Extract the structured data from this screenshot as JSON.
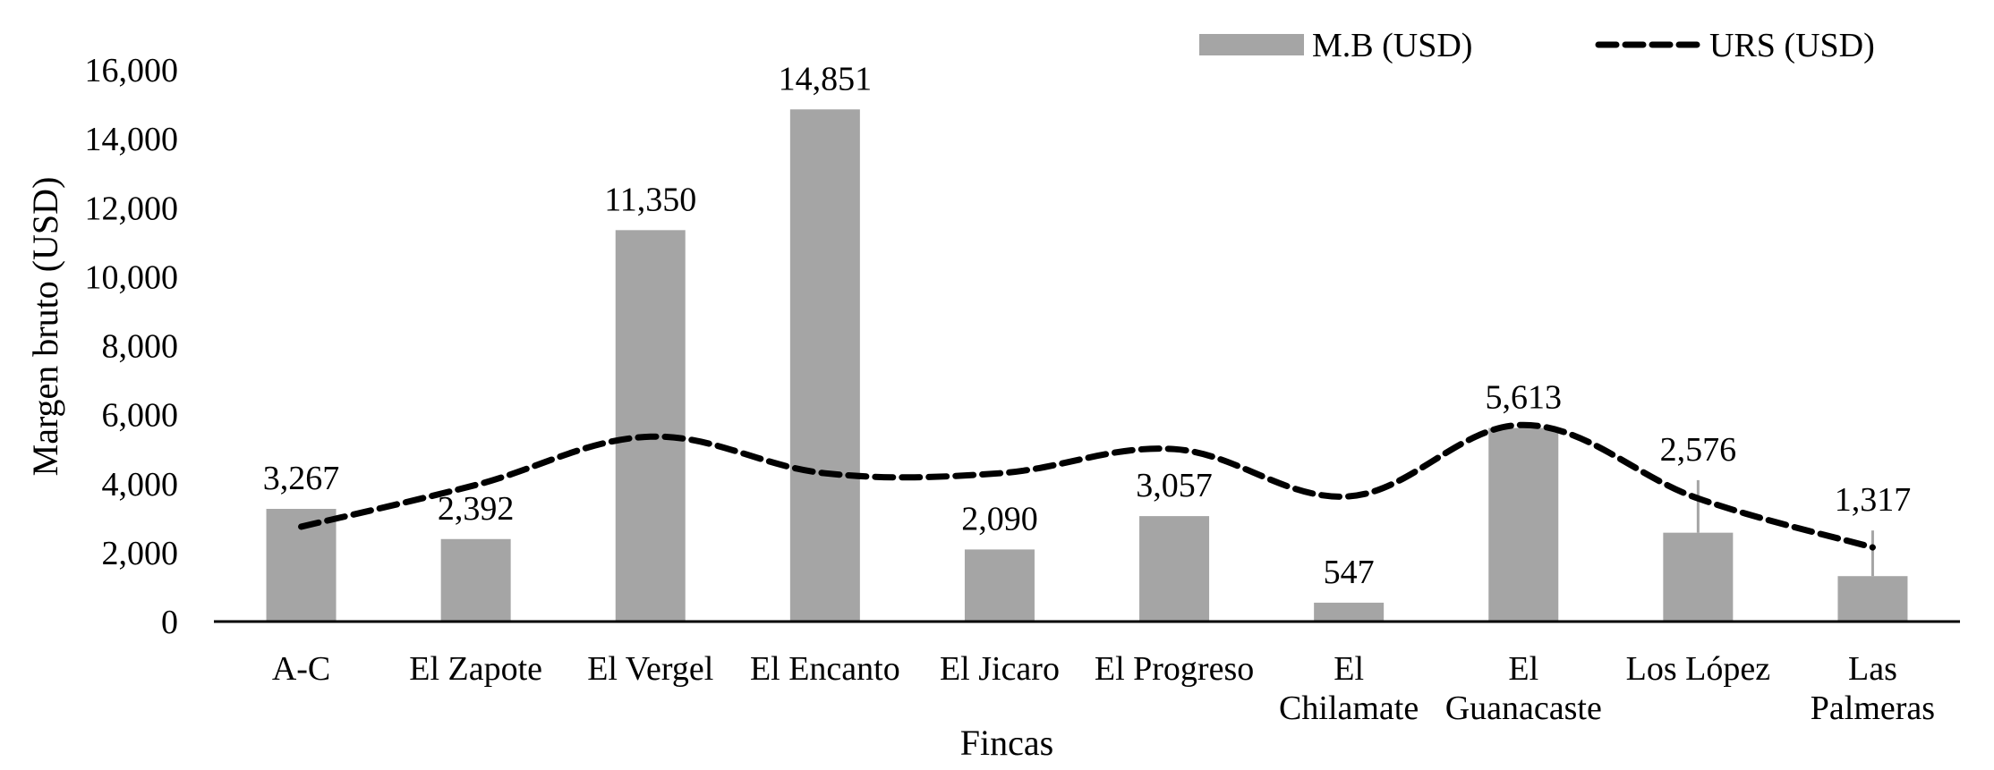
{
  "chart_data": {
    "type": "bar+line",
    "title": "",
    "xlabel": "Fincas",
    "ylabel": "Margen bruto (USD)",
    "ylim": [
      0,
      16000
    ],
    "yticks": [
      0,
      2000,
      4000,
      6000,
      8000,
      10000,
      12000,
      14000,
      16000
    ],
    "ytick_labels": [
      "0",
      "2,000",
      "4,000",
      "6,000",
      "8,000",
      "10,000",
      "12,000",
      "14,000",
      "16,000"
    ],
    "grid": false,
    "legend_position": "top-right",
    "categories": [
      [
        "A-C"
      ],
      [
        "El Zapote"
      ],
      [
        "El Vergel"
      ],
      [
        "El Encanto"
      ],
      [
        "El Jicaro"
      ],
      [
        "El Progreso"
      ],
      [
        "El",
        "Chilamate"
      ],
      [
        "El",
        "Guanacaste"
      ],
      [
        "Los López"
      ],
      [
        "Las",
        "Palmeras"
      ]
    ],
    "series": [
      {
        "name": "M.B (USD)",
        "type": "bar",
        "color": "#a5a5a5",
        "values": [
          3267,
          2392,
          11350,
          14851,
          2090,
          3057,
          547,
          5613,
          2576,
          1317
        ],
        "data_labels": [
          "3,267",
          "2,392",
          "11,350",
          "14,851",
          "2,090",
          "3,057",
          "547",
          "5,613",
          "2,576",
          "1,317"
        ],
        "error_bar_upper": [
          null,
          null,
          null,
          null,
          null,
          null,
          null,
          null,
          4100,
          2640
        ]
      },
      {
        "name": "URS (USD)",
        "type": "line",
        "style": "dashed",
        "smooth": true,
        "color": "#000000",
        "values": [
          2750,
          3960,
          5360,
          4300,
          4300,
          5000,
          3630,
          5700,
          3570,
          2150
        ]
      }
    ]
  },
  "legend": {
    "items": [
      {
        "label": "M.B (USD)",
        "swatch": "bar",
        "color": "#a5a5a5"
      },
      {
        "label": "URS (USD)",
        "swatch": "dashed-line",
        "color": "#000000"
      }
    ]
  },
  "axes": {
    "x_title": "Fincas",
    "y_title": "Margen bruto (USD)",
    "axis_color": "#000000"
  }
}
